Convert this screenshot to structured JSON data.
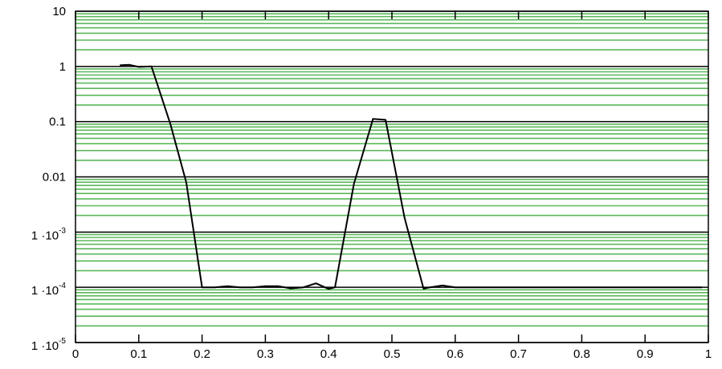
{
  "chart_data": {
    "type": "line",
    "title": "",
    "xlabel": "",
    "ylabel": "",
    "xlim": [
      0,
      1
    ],
    "ylim": [
      1e-05,
      10
    ],
    "yscale": "log",
    "grid": true,
    "x_ticks": [
      "0",
      "0.1",
      "0.2",
      "0.3",
      "0.4",
      "0.5",
      "0.6",
      "0.7",
      "0.8",
      "0.9",
      "1"
    ],
    "y_ticks": [
      {
        "value": 10,
        "label": "10"
      },
      {
        "value": 1,
        "label": "1"
      },
      {
        "value": 0.1,
        "label": "0.1"
      },
      {
        "value": 0.01,
        "label": "0.01"
      },
      {
        "value": 0.001,
        "label_base": "1 ·10",
        "label_exp": "-3"
      },
      {
        "value": 0.0001,
        "label_base": "1 ·10",
        "label_exp": "-4"
      },
      {
        "value": 1e-05,
        "label_base": "1 ·10",
        "label_exp": "-5"
      }
    ],
    "colors": {
      "major_grid": "#000000",
      "minor_grid": "#5cb85c",
      "series": "#000000",
      "frame": "#000000"
    },
    "series": [
      {
        "points": [
          [
            0.07,
            1.05
          ],
          [
            0.085,
            1.07
          ],
          [
            0.1,
            0.98
          ],
          [
            0.12,
            1.0
          ],
          [
            0.15,
            0.09
          ],
          [
            0.175,
            0.008
          ],
          [
            0.2,
            0.0001
          ],
          [
            0.22,
            0.0001
          ],
          [
            0.24,
            0.000105
          ],
          [
            0.26,
            0.0001
          ],
          [
            0.28,
            0.0001
          ],
          [
            0.3,
            0.000105
          ],
          [
            0.32,
            0.000105
          ],
          [
            0.34,
            9.55e-05
          ],
          [
            0.36,
            0.0001
          ],
          [
            0.38,
            0.000118
          ],
          [
            0.4,
            9.35e-05
          ],
          [
            0.41,
            0.0001
          ],
          [
            0.44,
            0.0075
          ],
          [
            0.47,
            0.112
          ],
          [
            0.49,
            0.108
          ],
          [
            0.52,
            0.0018
          ],
          [
            0.55,
            9.45e-05
          ],
          [
            0.56,
            0.0001
          ],
          [
            0.58,
            0.000108
          ],
          [
            0.6,
            0.0001
          ],
          [
            0.7,
            0.0001
          ],
          [
            0.8,
            0.0001
          ],
          [
            0.9,
            0.0001
          ],
          [
            0.99,
            0.0001
          ]
        ]
      }
    ]
  }
}
